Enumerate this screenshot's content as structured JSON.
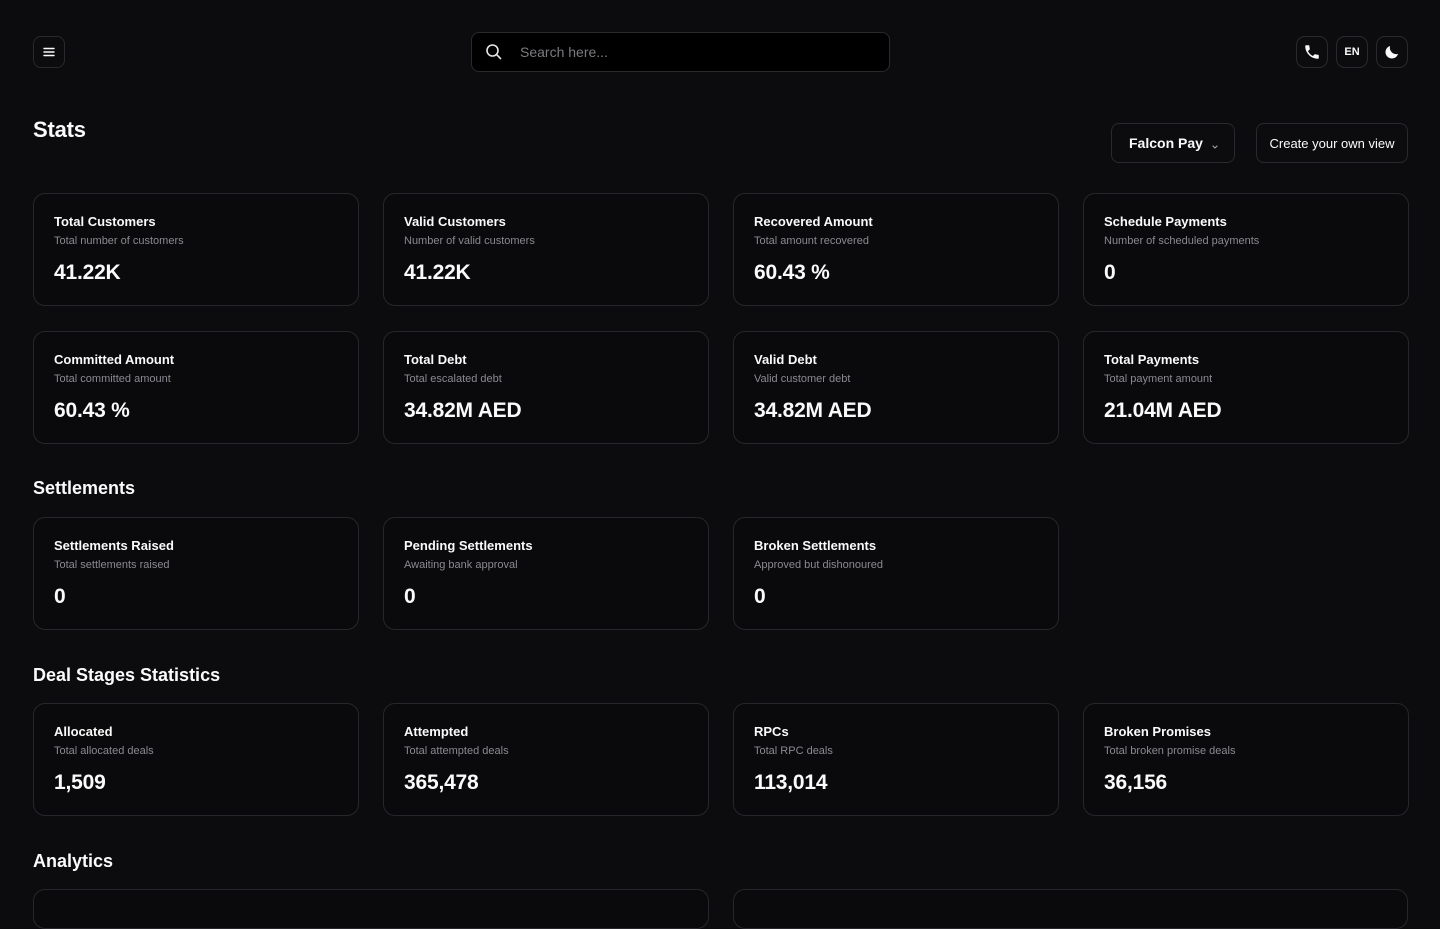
{
  "topbar": {
    "search_placeholder": "Search here...",
    "language": "EN"
  },
  "header": {
    "title": "Stats",
    "selected_view": "Falcon Pay",
    "create_view_label": "Create your own view"
  },
  "stats": [
    {
      "title": "Total Customers",
      "subtitle": "Total number of customers",
      "value": "41.22K"
    },
    {
      "title": "Valid Customers",
      "subtitle": "Number of valid customers",
      "value": "41.22K"
    },
    {
      "title": "Recovered Amount",
      "subtitle": "Total amount recovered",
      "value": "60.43 %"
    },
    {
      "title": "Schedule Payments",
      "subtitle": "Number of scheduled payments",
      "value": "0"
    },
    {
      "title": "Committed Amount",
      "subtitle": "Total committed amount",
      "value": "60.43 %"
    },
    {
      "title": "Total Debt",
      "subtitle": "Total escalated debt",
      "value": "34.82M AED"
    },
    {
      "title": "Valid Debt",
      "subtitle": "Valid customer debt",
      "value": "34.82M AED"
    },
    {
      "title": "Total Payments",
      "subtitle": "Total payment amount",
      "value": "21.04M AED"
    }
  ],
  "settlements": {
    "title": "Settlements",
    "cards": [
      {
        "title": "Settlements Raised",
        "subtitle": "Total settlements raised",
        "value": "0"
      },
      {
        "title": "Pending Settlements",
        "subtitle": "Awaiting bank approval",
        "value": "0"
      },
      {
        "title": "Broken Settlements",
        "subtitle": "Approved but dishonoured",
        "value": "0"
      }
    ]
  },
  "deal_stages": {
    "title": "Deal Stages Statistics",
    "cards": [
      {
        "title": "Allocated",
        "subtitle": "Total allocated deals",
        "value": "1,509"
      },
      {
        "title": "Attempted",
        "subtitle": "Total attempted deals",
        "value": "365,478"
      },
      {
        "title": "RPCs",
        "subtitle": "Total RPC deals",
        "value": "113,014"
      },
      {
        "title": "Broken Promises",
        "subtitle": "Total broken promise deals",
        "value": "36,156"
      }
    ]
  },
  "analytics": {
    "title": "Analytics"
  }
}
